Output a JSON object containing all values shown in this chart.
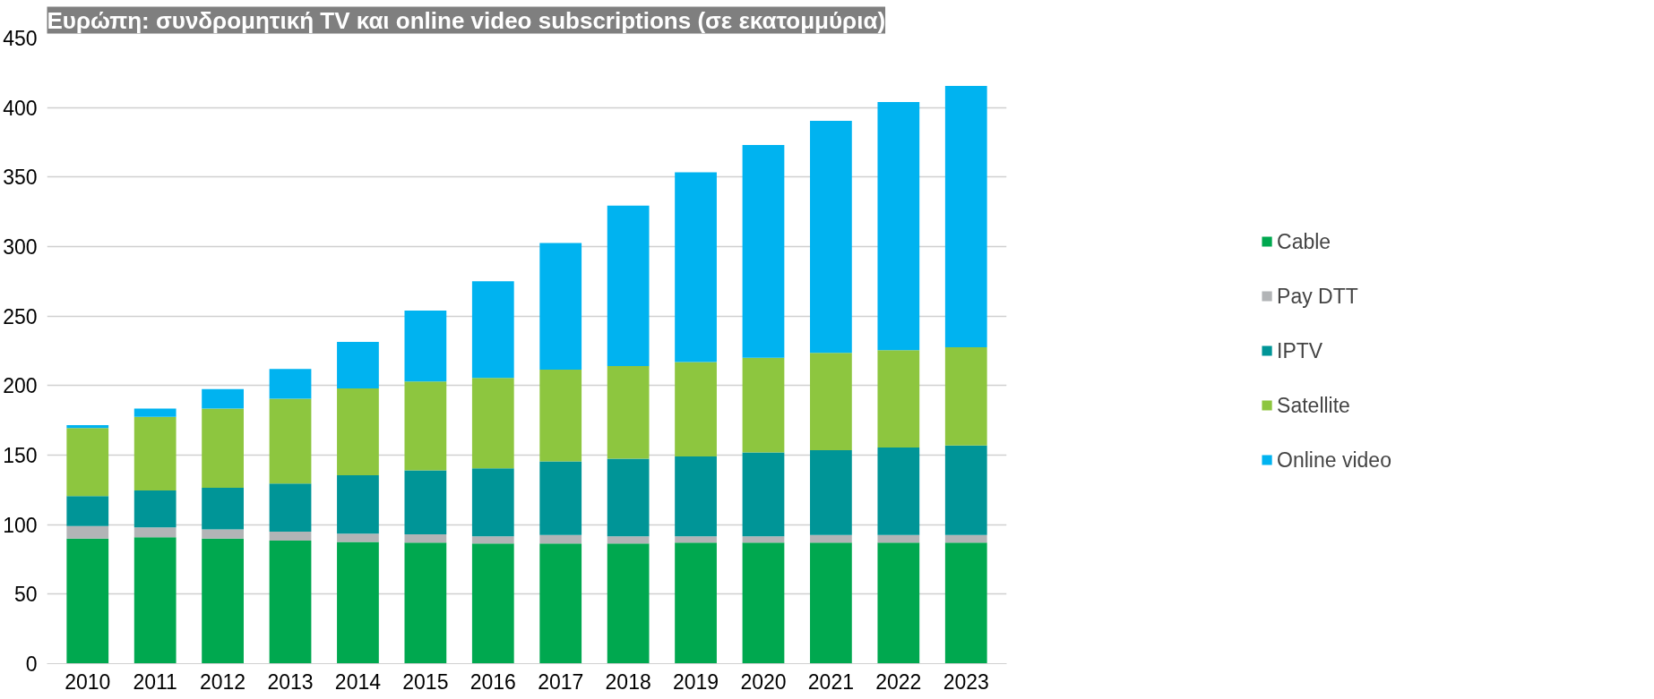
{
  "chart_data": {
    "type": "bar",
    "title": "Ευρώπη: συνδρομητική TV και online video subscriptions (σε εκατομμύρια)",
    "categories": [
      "2010",
      "2011",
      "2012",
      "2013",
      "2014",
      "2015",
      "2016",
      "2017",
      "2018",
      "2019",
      "2020",
      "2021",
      "2022",
      "2023"
    ],
    "stacked": true,
    "series": [
      {
        "name": "Cable",
        "color": "#00a84f",
        "values": [
          90,
          91,
          90,
          88.5,
          87.5,
          87,
          86.5,
          86.5,
          86.5,
          87,
          87,
          87,
          87,
          87
        ]
      },
      {
        "name": "Pay DTT",
        "color": "#b2b4b6",
        "values": [
          9,
          7,
          6.5,
          6.5,
          6,
          6,
          5,
          6,
          5,
          4.5,
          4.5,
          5.5,
          5.5,
          5.5
        ]
      },
      {
        "name": "IPTV",
        "color": "#009597",
        "values": [
          21.5,
          26.5,
          30,
          34.5,
          42,
          46,
          49,
          53,
          56,
          57.5,
          60.5,
          61,
          63,
          64.5
        ]
      },
      {
        "name": "Satellite",
        "color": "#8dc63f",
        "values": [
          49,
          53,
          57,
          61,
          62.5,
          64,
          65,
          66,
          66.5,
          68,
          68,
          70,
          70,
          70.5
        ]
      },
      {
        "name": "Online video",
        "color": "#00b3f0",
        "values": [
          2,
          6,
          14,
          21.5,
          33.5,
          51,
          69.5,
          91,
          115.5,
          136.5,
          153,
          167,
          178.5,
          188
        ]
      }
    ],
    "ylim": [
      0,
      450
    ],
    "yticks": [
      0,
      50,
      100,
      150,
      200,
      250,
      300,
      350,
      400,
      450
    ],
    "grid": "y",
    "legend": "right"
  }
}
